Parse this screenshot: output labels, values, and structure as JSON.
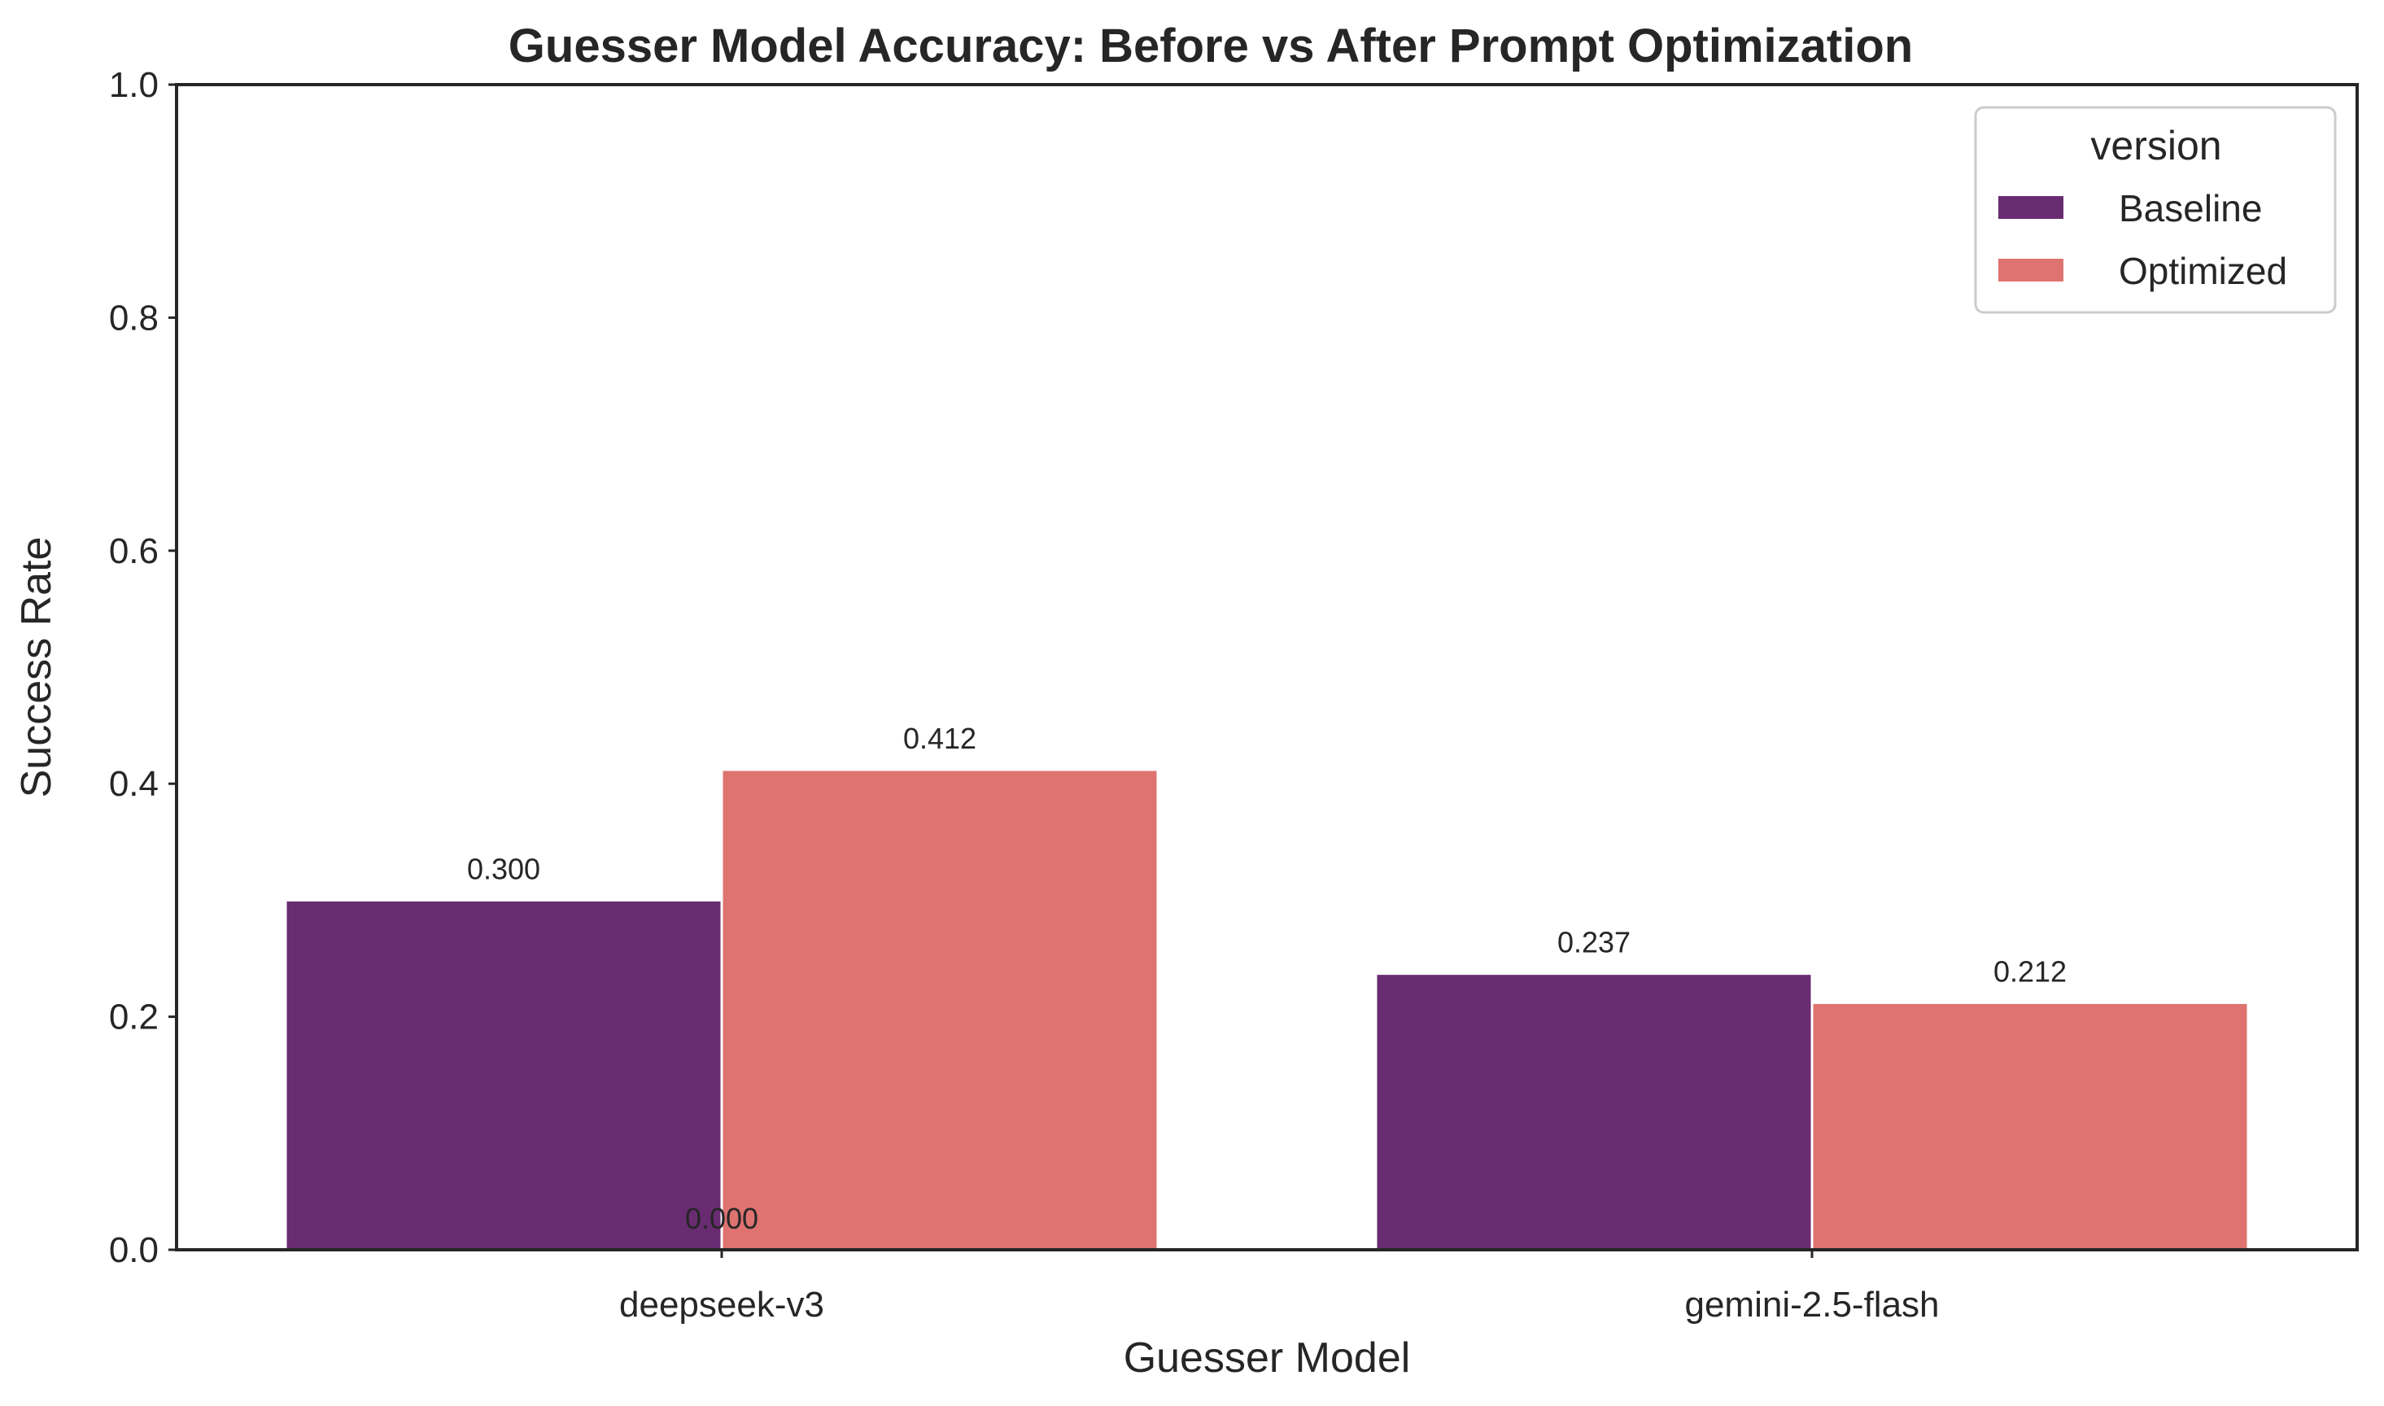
{
  "chart_data": {
    "type": "bar",
    "title": "Guesser Model Accuracy: Before vs After Prompt Optimization",
    "xlabel": "Guesser Model",
    "ylabel": "Success Rate",
    "ylim": [
      0,
      1.0
    ],
    "yticks": [
      "0.0",
      "0.2",
      "0.4",
      "0.6",
      "0.8",
      "1.0"
    ],
    "ytick_values": [
      0,
      0.2,
      0.4,
      0.6,
      0.8,
      1.0
    ],
    "categories": [
      "deepseek-v3",
      "gemini-2.5-flash"
    ],
    "series": [
      {
        "name": "Baseline",
        "color": "#692b72",
        "values": [
          0.3,
          0.237
        ],
        "labels": [
          "0.300",
          "0.237"
        ]
      },
      {
        "name": "Optimized",
        "color": "#de7370",
        "values": [
          0.412,
          0.212
        ],
        "labels": [
          "0.412",
          "0.212"
        ]
      }
    ],
    "extra_labels": [
      {
        "text": "0.000",
        "category_index": 0
      }
    ],
    "legend": {
      "title": "version",
      "position": "top-right"
    },
    "grid": false
  }
}
